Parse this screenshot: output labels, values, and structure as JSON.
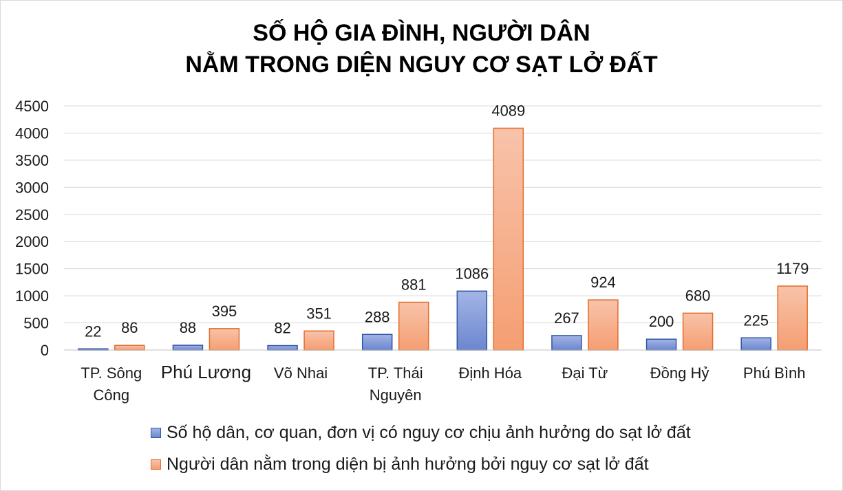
{
  "chart_data": {
    "type": "bar",
    "title_lines": [
      "SỐ HỘ GIA ĐÌNH, NGƯỜI DÂN",
      "NẰM TRONG DIỆN NGUY CƠ SẠT LỞ ĐẤT"
    ],
    "categories": [
      [
        "TP. Sông",
        "Công"
      ],
      [
        "Phú Lương"
      ],
      [
        "Võ Nhai"
      ],
      [
        "TP. Thái",
        "Nguyên"
      ],
      [
        "Định Hóa"
      ],
      [
        "Đại Từ"
      ],
      [
        "Đồng Hỷ"
      ],
      [
        "Phú Bình"
      ]
    ],
    "series": [
      {
        "name": "Số hộ dân, cơ quan, đơn vị có nguy cơ chịu ảnh hưởng do sạt lở đất",
        "values": [
          22,
          88,
          82,
          288,
          1086,
          267,
          200,
          225
        ],
        "color": "#7f98d8",
        "edge": "#2f55a6"
      },
      {
        "name": "Người dân nằm trong diện bị ảnh hưởng bởi nguy cơ sạt lở đất",
        "values": [
          86,
          395,
          351,
          881,
          4089,
          924,
          680,
          1179
        ],
        "color": "#f5a47f",
        "edge": "#e46c2b"
      }
    ],
    "ylim": [
      0,
      4500
    ],
    "yticks": [
      0,
      500,
      1000,
      1500,
      2000,
      2500,
      3000,
      3500,
      4000,
      4500
    ],
    "grid": true,
    "legend_position": "bottom"
  }
}
